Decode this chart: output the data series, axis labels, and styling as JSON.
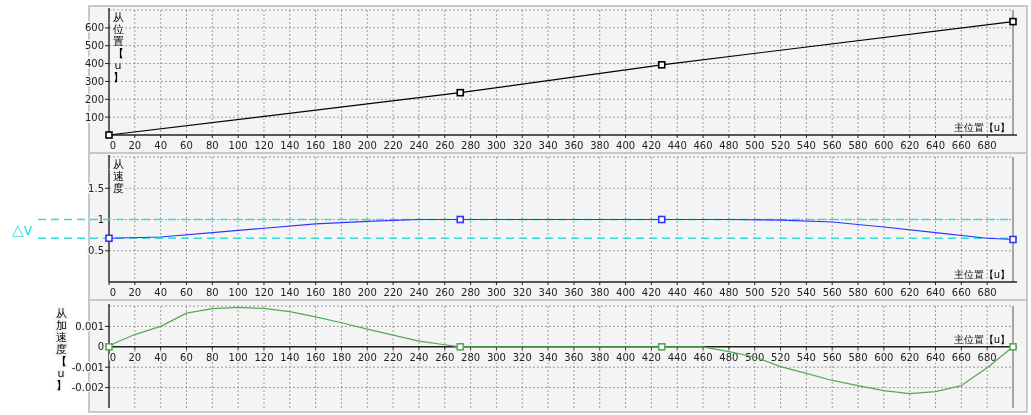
{
  "chart_data": [
    {
      "type": "line",
      "xlabel": "主位置【u】",
      "ylabel": "从位置【u】",
      "xlim": [
        0,
        700
      ],
      "ylim": [
        0,
        700
      ],
      "xticks": [
        0,
        20,
        40,
        60,
        80,
        100,
        120,
        140,
        160,
        180,
        200,
        220,
        240,
        260,
        280,
        300,
        320,
        340,
        360,
        380,
        400,
        420,
        440,
        460,
        480,
        500,
        520,
        540,
        560,
        580,
        600,
        620,
        640,
        660,
        680
      ],
      "yticks": [
        100,
        200,
        300,
        400,
        500,
        600
      ],
      "grid": true,
      "line_style": "solid",
      "series": [
        {
          "color": "#000000",
          "x": [
            0,
            272,
            428,
            700
          ],
          "values": [
            0,
            237,
            393,
            635
          ]
        },
        {
          "type": "scatter",
          "marker": "square",
          "color": "#000000",
          "x": [
            0,
            272,
            428,
            700
          ],
          "values": [
            0,
            237,
            393,
            635
          ]
        }
      ]
    },
    {
      "type": "line",
      "xlabel": "主位置【u】",
      "ylabel": "从速度",
      "xlim": [
        0,
        700
      ],
      "ylim": [
        0,
        2
      ],
      "xticks": [
        0,
        20,
        40,
        60,
        80,
        100,
        120,
        140,
        160,
        180,
        200,
        220,
        240,
        260,
        280,
        300,
        320,
        340,
        360,
        380,
        400,
        420,
        440,
        460,
        480,
        500,
        520,
        540,
        560,
        580,
        600,
        620,
        640,
        660,
        680
      ],
      "yticks": [
        0.5,
        1,
        1.5
      ],
      "grid": true,
      "line_style": "solid",
      "ref_lines": [
        {
          "axis": "y",
          "value": 1,
          "color": "#33dddd",
          "line_style": "dashed"
        },
        {
          "axis": "y",
          "value": 0.7,
          "color": "#33dddd",
          "line_style": "dashed"
        }
      ],
      "annotations": [
        "△v"
      ],
      "series": [
        {
          "color": "#3333ff",
          "x": [
            0,
            40,
            80,
            120,
            160,
            200,
            240,
            272,
            428,
            480,
            520,
            560,
            600,
            640,
            680,
            700
          ],
          "values": [
            0.7,
            0.72,
            0.79,
            0.86,
            0.93,
            0.97,
            1.0,
            1.0,
            1.0,
            1.0,
            0.99,
            0.96,
            0.88,
            0.79,
            0.7,
            0.68
          ]
        },
        {
          "type": "scatter",
          "marker": "square",
          "color": "#3333ff",
          "x": [
            0,
            272,
            428,
            700
          ],
          "values": [
            0.7,
            1.0,
            1.0,
            0.68
          ]
        }
      ]
    },
    {
      "type": "line",
      "xlabel": "主位置【u】",
      "ylabel": "从加速度【u】",
      "xlim": [
        0,
        700
      ],
      "ylim": [
        -0.003,
        0.002
      ],
      "xticks": [
        0,
        20,
        40,
        60,
        80,
        100,
        120,
        140,
        160,
        180,
        200,
        220,
        240,
        260,
        280,
        300,
        320,
        340,
        360,
        380,
        400,
        420,
        440,
        460,
        480,
        500,
        520,
        540,
        560,
        580,
        600,
        620,
        640,
        660,
        680
      ],
      "yticks": [
        -0.002,
        -0.001,
        0,
        0.001
      ],
      "grid": true,
      "line_style": "solid",
      "series": [
        {
          "color": "#55aa55",
          "x": [
            0,
            5,
            20,
            40,
            60,
            80,
            100,
            120,
            140,
            160,
            180,
            200,
            220,
            240,
            260,
            272,
            428,
            460,
            480,
            500,
            520,
            540,
            560,
            580,
            600,
            620,
            640,
            660,
            680,
            700
          ],
          "values": [
            0,
            0.0002,
            0.0006,
            0.001,
            0.00165,
            0.00187,
            0.00193,
            0.00188,
            0.00172,
            0.00147,
            0.00118,
            0.00087,
            0.00057,
            0.00028,
            0.0001,
            0,
            0,
            0,
            -0.00024,
            -0.0005,
            -0.00097,
            -0.0013,
            -0.00165,
            -0.0019,
            -0.00215,
            -0.0023,
            -0.0022,
            -0.0019,
            -0.00103,
            0
          ]
        },
        {
          "type": "scatter",
          "marker": "square",
          "color": "#55aa55",
          "x": [
            0,
            272,
            428,
            700
          ],
          "values": [
            0,
            0,
            0,
            0
          ]
        }
      ]
    }
  ]
}
